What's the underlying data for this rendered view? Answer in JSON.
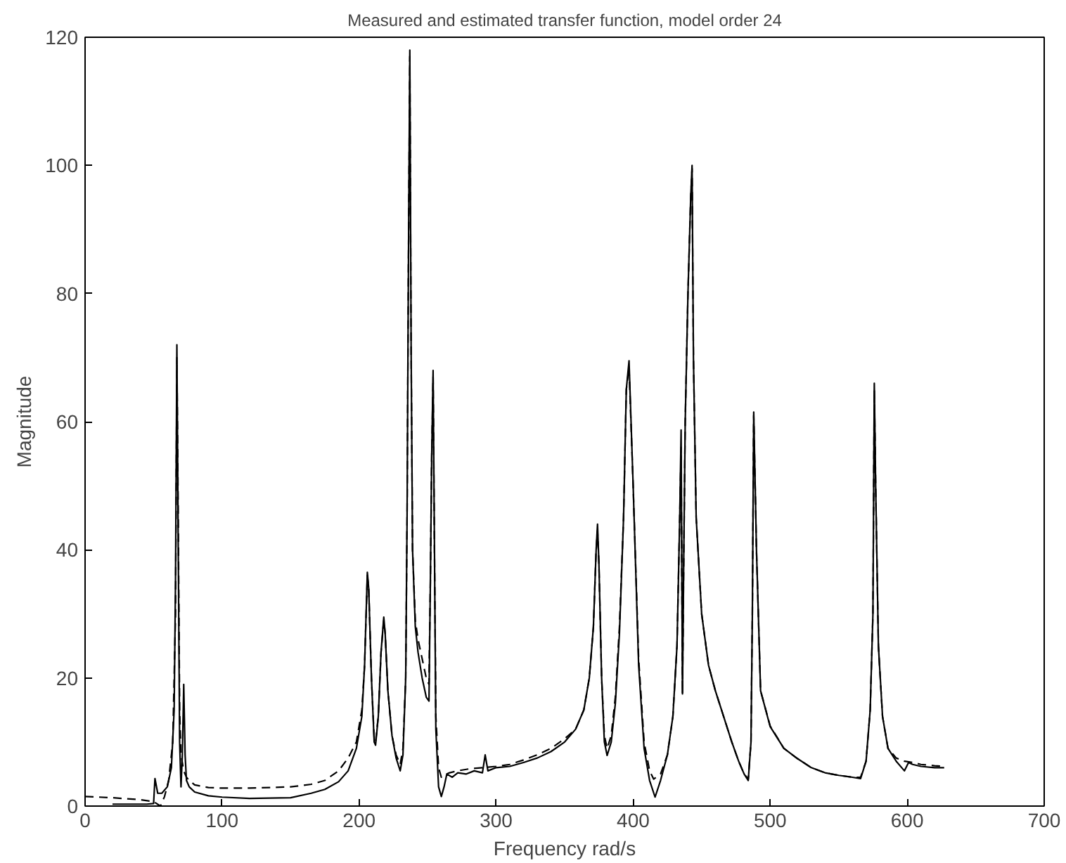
{
  "chart_data": {
    "type": "line",
    "title": "Measured and estimated transfer function, model order 24",
    "xlabel": "Frequency rad/s",
    "ylabel": "Magnitude",
    "xlim": [
      0,
      700
    ],
    "ylim": [
      0,
      120
    ],
    "xticks": [
      0,
      100,
      200,
      300,
      400,
      500,
      600,
      700
    ],
    "yticks": [
      0,
      20,
      40,
      60,
      80,
      100,
      120
    ],
    "grid": false,
    "series": [
      {
        "color": "#000000",
        "line_style": "solid",
        "x": [
          20,
          45,
          50,
          51,
          53,
          56,
          60,
          63,
          65,
          66,
          67,
          68,
          69,
          70,
          71,
          72,
          73,
          74,
          76,
          80,
          90,
          100,
          120,
          150,
          165,
          175,
          185,
          192,
          198,
          202,
          204,
          206,
          207,
          209,
          211,
          212,
          214,
          216,
          218,
          219,
          221,
          224,
          227,
          230,
          232,
          234,
          235,
          236,
          237,
          238,
          239,
          241,
          243,
          246,
          249,
          251,
          252,
          253,
          254,
          255,
          256,
          258,
          260,
          262,
          264,
          268,
          272,
          278,
          284,
          290,
          292,
          294,
          300,
          310,
          320,
          330,
          340,
          350,
          358,
          364,
          368,
          371,
          373,
          374,
          375,
          377,
          379,
          381,
          384,
          387,
          390,
          393,
          395,
          397,
          400,
          404,
          408,
          412,
          416,
          420,
          425,
          429,
          432,
          434,
          435,
          436,
          437,
          438,
          440,
          442,
          443,
          444,
          446,
          450,
          455,
          460,
          466,
          472,
          477,
          481,
          484,
          486,
          487,
          488,
          490,
          493,
          500,
          510,
          520,
          530,
          540,
          550,
          560,
          566,
          570,
          573,
          575,
          576,
          577,
          579,
          582,
          586,
          592,
          598,
          601,
          604,
          610,
          620,
          627
        ],
        "values": [
          0.3,
          0.3,
          0.4,
          4.3,
          2.0,
          2.0,
          3.0,
          6.0,
          15,
          35,
          72,
          40,
          10,
          3.0,
          8.0,
          19,
          8.0,
          4.0,
          3.0,
          2.2,
          1.6,
          1.4,
          1.2,
          1.3,
          2.0,
          2.6,
          3.8,
          5.5,
          9.0,
          14,
          22,
          36.5,
          34,
          20,
          10,
          9.5,
          14,
          24,
          29.5,
          27,
          18,
          11,
          7.5,
          5.5,
          8,
          20,
          45,
          85,
          118,
          70,
          40,
          28,
          24,
          20,
          17,
          16.4,
          35,
          55,
          68,
          40,
          12,
          3,
          1.5,
          3,
          5,
          4.5,
          5.2,
          5.0,
          5.5,
          5.2,
          8.0,
          5.5,
          6.0,
          6.2,
          6.8,
          7.5,
          8.5,
          10,
          12,
          15,
          20,
          28,
          40,
          44,
          38,
          20,
          10,
          7.9,
          10,
          16,
          27,
          45,
          65,
          69.5,
          50,
          22,
          9,
          4,
          1.4,
          4,
          8,
          14,
          25,
          45,
          58.7,
          17.5,
          40,
          60,
          80,
          95,
          100,
          70,
          45,
          30,
          22,
          18,
          14,
          10,
          7,
          5,
          4,
          10,
          30,
          61.5,
          40,
          18,
          12.4,
          9,
          7.4,
          6.0,
          5.2,
          4.8,
          4.5,
          4.3,
          7,
          15,
          30,
          66,
          50,
          25,
          14,
          9,
          7,
          5.5,
          6.8,
          6.5,
          6.2,
          6.0,
          6.0
        ]
      },
      {
        "color": "#000000",
        "line_style": "dashed",
        "x": [
          0,
          20,
          40,
          50,
          55,
          58,
          61,
          64,
          66,
          67,
          68,
          69,
          70,
          72,
          74,
          76,
          80,
          90,
          100,
          120,
          150,
          165,
          175,
          185,
          192,
          198,
          202,
          204,
          206,
          207,
          209,
          211,
          212,
          214,
          216,
          218,
          219,
          221,
          224,
          227,
          230,
          232,
          234,
          235,
          236,
          237,
          238,
          239,
          241,
          243,
          246,
          249,
          251,
          252,
          253,
          254,
          255,
          256,
          258,
          260,
          262,
          266,
          272,
          280,
          290,
          300,
          310,
          320,
          330,
          340,
          350,
          358,
          364,
          368,
          371,
          373,
          374,
          375,
          377,
          379,
          381,
          384,
          387,
          390,
          393,
          395,
          397,
          400,
          404,
          408,
          412,
          415,
          420,
          425,
          429,
          432,
          434,
          435,
          436,
          437,
          438,
          440,
          442,
          443,
          444,
          446,
          450,
          455,
          460,
          466,
          472,
          477,
          481,
          484,
          486,
          487,
          488,
          490,
          493,
          500,
          510,
          520,
          530,
          540,
          550,
          560,
          566,
          570,
          573,
          575,
          576,
          577,
          579,
          582,
          586,
          592,
          598,
          604,
          610,
          620,
          627
        ],
        "values": [
          1.5,
          1.3,
          1.0,
          0.7,
          0.0,
          1.5,
          4.0,
          10,
          30,
          70,
          45,
          15,
          8,
          5.5,
          4.5,
          4.0,
          3.3,
          2.9,
          2.8,
          2.8,
          3.0,
          3.4,
          4.0,
          5.5,
          7.5,
          10,
          15,
          22,
          36,
          34,
          20,
          10.5,
          10,
          14,
          24,
          29,
          27,
          18,
          11,
          8,
          6.5,
          9,
          20,
          45,
          85,
          117,
          70,
          40,
          29,
          26,
          23,
          20,
          19,
          35,
          55,
          67,
          40,
          14,
          6,
          4.5,
          4.8,
          5.2,
          5.5,
          5.8,
          6.0,
          6.2,
          6.5,
          7.2,
          8,
          9,
          10.5,
          12,
          15,
          20,
          28,
          40,
          43,
          38,
          20,
          11,
          9,
          11,
          17,
          28,
          45,
          65,
          68.5,
          50,
          23,
          10,
          5.5,
          4.2,
          5,
          8,
          14,
          25,
          45,
          56,
          17.5,
          40,
          60,
          80,
          95,
          99.5,
          70,
          45,
          30,
          22,
          18,
          14,
          10,
          7,
          5,
          4.2,
          10,
          30,
          61,
          40,
          18,
          12.5,
          9,
          7.4,
          6.0,
          5.2,
          4.8,
          4.5,
          4.5,
          7,
          15,
          30,
          65,
          50,
          25,
          14,
          9,
          7.5,
          7.0,
          6.8,
          6.5,
          6.3,
          6.2
        ]
      }
    ]
  }
}
